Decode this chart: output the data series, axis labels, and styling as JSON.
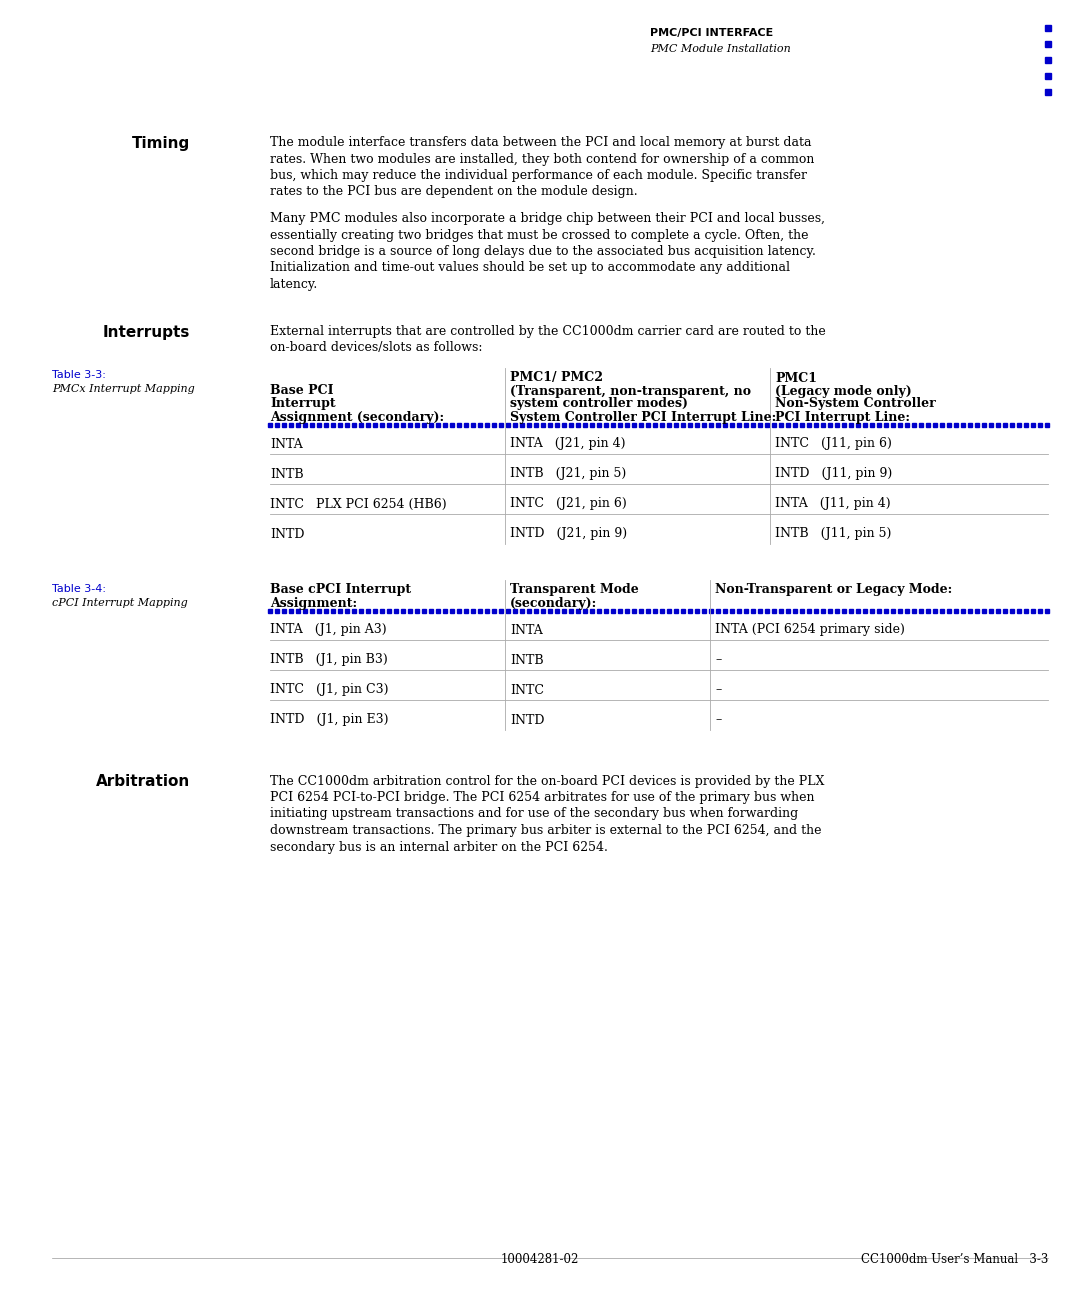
{
  "bg_color": "#ffffff",
  "header_title": "PMC/PCI INTERFACE",
  "header_subtitle": "PMC Module Installation",
  "blue_color": "#0000cc",
  "table_line_color": "#aaaaaa",
  "label_color": "#0000cc",
  "text_color": "#000000",
  "timing_heading": "Timing",
  "timing_lines1": [
    "The module interface transfers data between the PCI and local memory at burst data",
    "rates. When two modules are installed, they both contend for ownership of a common",
    "bus, which may reduce the individual performance of each module. Specific transfer",
    "rates to the PCI bus are dependent on the module design."
  ],
  "timing_lines2": [
    "Many PMC modules also incorporate a bridge chip between their PCI and local busses,",
    "essentially creating two bridges that must be crossed to complete a cycle. Often, the",
    "second bridge is a source of long delays due to the associated bus acquisition latency.",
    "Initialization and time-out values should be set up to accommodate any additional",
    "latency."
  ],
  "interrupts_heading": "Interrupts",
  "interrupts_lines": [
    "External interrupts that are controlled by the CC1000dm carrier card are routed to the",
    "on-board devices/slots as follows:"
  ],
  "table3_label": "Table 3-3:",
  "table3_caption": "PMCx Interrupt Mapping",
  "table3_h1": [
    "Base PCI",
    "Interrupt",
    "Assignment (secondary):"
  ],
  "table3_h2": [
    "PMC1/ PMC2",
    "(Transparent, non-transparent, no",
    "system controller modes)",
    "System Controller PCI Interrupt Line:"
  ],
  "table3_h3": [
    "PMC1",
    "(Legacy mode only)",
    "Non-System Controller",
    "PCI Interrupt Line:"
  ],
  "table3_rows": [
    [
      "INTA",
      "INTA   (J21, pin 4)",
      "INTC   (J11, pin 6)"
    ],
    [
      "INTB",
      "INTB   (J21, pin 5)",
      "INTD   (J11, pin 9)"
    ],
    [
      "INTC   PLX PCI 6254 (HB6)",
      "INTC   (J21, pin 6)",
      "INTA   (J11, pin 4)"
    ],
    [
      "INTD",
      "INTD   (J21, pin 9)",
      "INTB   (J11, pin 5)"
    ]
  ],
  "table4_label": "Table 3-4:",
  "table4_caption": "cPCI Interrupt Mapping",
  "table4_h1": [
    "Base cPCI Interrupt",
    "Assignment:"
  ],
  "table4_h2": [
    "Transparent Mode",
    "(secondary):"
  ],
  "table4_h3": [
    "Non-Transparent or Legacy Mode:"
  ],
  "table4_rows": [
    [
      "INTA   (J1, pin A3)",
      "INTA",
      "INTA (PCI 6254 primary side)"
    ],
    [
      "INTB   (J1, pin B3)",
      "INTB",
      "–"
    ],
    [
      "INTC   (J1, pin C3)",
      "INTC",
      "–"
    ],
    [
      "INTD   (J1, pin E3)",
      "INTD",
      "–"
    ]
  ],
  "arbitration_heading": "Arbitration",
  "arbitration_lines": [
    "The CC1000dm arbitration control for the on-board PCI devices is provided by the PLX",
    "PCI 6254 PCI-to-PCI bridge. The PCI 6254 arbitrates for use of the primary bus when",
    "initiating upstream transactions and for use of the secondary bus when forwarding",
    "downstream transactions. The primary bus arbiter is external to the PCI 6254, and the",
    "secondary bus is an internal arbiter on the PCI 6254."
  ],
  "footer_left": "10004281-02",
  "footer_right": "CC1000dm User’s Manual   3-3"
}
